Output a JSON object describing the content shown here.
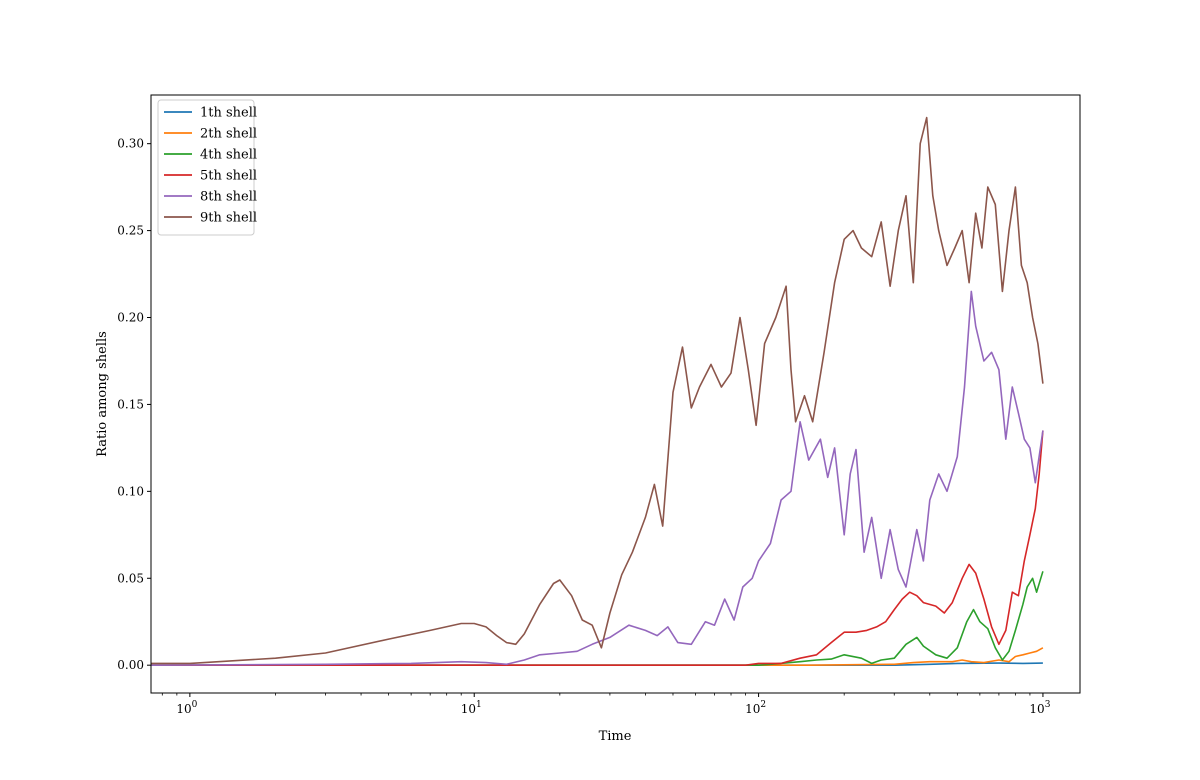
{
  "chart_data": {
    "type": "line",
    "title": "",
    "xlabel": "Time",
    "ylabel": "Ratio among shells",
    "xscale": "log",
    "xlim": [
      0.73,
      1350
    ],
    "ylim": [
      -0.016,
      0.328
    ],
    "grid": false,
    "legend_position": "upper-left",
    "x_ticks": [
      {
        "value": 1,
        "base": "10",
        "exp": "0"
      },
      {
        "value": 10,
        "base": "10",
        "exp": "1"
      },
      {
        "value": 100,
        "base": "10",
        "exp": "2"
      },
      {
        "value": 1000,
        "base": "10",
        "exp": "3"
      }
    ],
    "y_ticks": [
      {
        "value": 0.0,
        "label": "0.00"
      },
      {
        "value": 0.05,
        "label": "0.05"
      },
      {
        "value": 0.1,
        "label": "0.10"
      },
      {
        "value": 0.15,
        "label": "0.15"
      },
      {
        "value": 0.2,
        "label": "0.20"
      },
      {
        "value": 0.25,
        "label": "0.25"
      },
      {
        "value": 0.3,
        "label": "0.30"
      }
    ],
    "series": [
      {
        "name": "1th shell",
        "color": "#1f77b4",
        "points": [
          [
            0.73,
            0.0
          ],
          [
            100,
            0.0
          ],
          [
            300,
            0.0
          ],
          [
            400,
            0.0005
          ],
          [
            500,
            0.001
          ],
          [
            700,
            0.0012
          ],
          [
            850,
            0.001
          ],
          [
            1000,
            0.0012
          ]
        ]
      },
      {
        "name": "2th shell",
        "color": "#ff7f0e",
        "points": [
          [
            0.73,
            0.0
          ],
          [
            150,
            0.0
          ],
          [
            300,
            0.0005
          ],
          [
            350,
            0.0015
          ],
          [
            400,
            0.002
          ],
          [
            480,
            0.002
          ],
          [
            520,
            0.003
          ],
          [
            560,
            0.002
          ],
          [
            620,
            0.0015
          ],
          [
            700,
            0.003
          ],
          [
            760,
            0.002
          ],
          [
            800,
            0.005
          ],
          [
            850,
            0.006
          ],
          [
            900,
            0.007
          ],
          [
            950,
            0.008
          ],
          [
            1000,
            0.01
          ]
        ]
      },
      {
        "name": "4th shell",
        "color": "#2ca02c",
        "points": [
          [
            0.73,
            0.0
          ],
          [
            100,
            0.0
          ],
          [
            110,
            0.0005
          ],
          [
            140,
            0.002
          ],
          [
            160,
            0.003
          ],
          [
            180,
            0.0035
          ],
          [
            200,
            0.006
          ],
          [
            230,
            0.004
          ],
          [
            250,
            0.001
          ],
          [
            270,
            0.003
          ],
          [
            300,
            0.004
          ],
          [
            330,
            0.012
          ],
          [
            360,
            0.016
          ],
          [
            380,
            0.011
          ],
          [
            420,
            0.006
          ],
          [
            460,
            0.004
          ],
          [
            500,
            0.01
          ],
          [
            540,
            0.025
          ],
          [
            570,
            0.032
          ],
          [
            600,
            0.025
          ],
          [
            640,
            0.021
          ],
          [
            680,
            0.01
          ],
          [
            720,
            0.003
          ],
          [
            760,
            0.008
          ],
          [
            800,
            0.02
          ],
          [
            850,
            0.035
          ],
          [
            880,
            0.045
          ],
          [
            920,
            0.05
          ],
          [
            950,
            0.042
          ],
          [
            1000,
            0.054
          ]
        ]
      },
      {
        "name": "5th shell",
        "color": "#d62728",
        "points": [
          [
            0.73,
            0.0
          ],
          [
            90,
            0.0
          ],
          [
            100,
            0.001
          ],
          [
            120,
            0.001
          ],
          [
            140,
            0.004
          ],
          [
            160,
            0.006
          ],
          [
            180,
            0.013
          ],
          [
            200,
            0.019
          ],
          [
            220,
            0.019
          ],
          [
            240,
            0.02
          ],
          [
            260,
            0.022
          ],
          [
            280,
            0.025
          ],
          [
            300,
            0.032
          ],
          [
            320,
            0.038
          ],
          [
            340,
            0.042
          ],
          [
            360,
            0.04
          ],
          [
            380,
            0.036
          ],
          [
            420,
            0.034
          ],
          [
            450,
            0.03
          ],
          [
            480,
            0.036
          ],
          [
            520,
            0.05
          ],
          [
            550,
            0.058
          ],
          [
            580,
            0.053
          ],
          [
            620,
            0.038
          ],
          [
            660,
            0.022
          ],
          [
            700,
            0.012
          ],
          [
            740,
            0.02
          ],
          [
            780,
            0.042
          ],
          [
            820,
            0.04
          ],
          [
            860,
            0.06
          ],
          [
            900,
            0.075
          ],
          [
            940,
            0.09
          ],
          [
            970,
            0.11
          ],
          [
            1000,
            0.135
          ]
        ]
      },
      {
        "name": "8th shell",
        "color": "#9467bd",
        "points": [
          [
            0.73,
            0.0
          ],
          [
            3,
            0.0005
          ],
          [
            6,
            0.001
          ],
          [
            9,
            0.002
          ],
          [
            11,
            0.0015
          ],
          [
            13,
            0.0005
          ],
          [
            15,
            0.003
          ],
          [
            17,
            0.006
          ],
          [
            20,
            0.007
          ],
          [
            23,
            0.008
          ],
          [
            26,
            0.012
          ],
          [
            30,
            0.016
          ],
          [
            35,
            0.023
          ],
          [
            40,
            0.02
          ],
          [
            44,
            0.017
          ],
          [
            48,
            0.022
          ],
          [
            52,
            0.013
          ],
          [
            58,
            0.012
          ],
          [
            65,
            0.025
          ],
          [
            70,
            0.023
          ],
          [
            76,
            0.038
          ],
          [
            82,
            0.026
          ],
          [
            88,
            0.045
          ],
          [
            95,
            0.05
          ],
          [
            100,
            0.06
          ],
          [
            110,
            0.07
          ],
          [
            120,
            0.095
          ],
          [
            130,
            0.1
          ],
          [
            140,
            0.14
          ],
          [
            150,
            0.118
          ],
          [
            165,
            0.13
          ],
          [
            175,
            0.108
          ],
          [
            185,
            0.125
          ],
          [
            200,
            0.075
          ],
          [
            210,
            0.11
          ],
          [
            220,
            0.124
          ],
          [
            235,
            0.065
          ],
          [
            250,
            0.085
          ],
          [
            270,
            0.05
          ],
          [
            290,
            0.078
          ],
          [
            310,
            0.055
          ],
          [
            330,
            0.045
          ],
          [
            360,
            0.078
          ],
          [
            380,
            0.06
          ],
          [
            400,
            0.095
          ],
          [
            430,
            0.11
          ],
          [
            460,
            0.1
          ],
          [
            500,
            0.12
          ],
          [
            530,
            0.16
          ],
          [
            560,
            0.215
          ],
          [
            580,
            0.195
          ],
          [
            620,
            0.175
          ],
          [
            660,
            0.18
          ],
          [
            700,
            0.17
          ],
          [
            740,
            0.13
          ],
          [
            780,
            0.16
          ],
          [
            820,
            0.145
          ],
          [
            860,
            0.13
          ],
          [
            900,
            0.125
          ],
          [
            940,
            0.105
          ],
          [
            980,
            0.125
          ],
          [
            1000,
            0.135
          ]
        ]
      },
      {
        "name": "9th shell",
        "color": "#8c564b",
        "points": [
          [
            0.73,
            0.001
          ],
          [
            1,
            0.001
          ],
          [
            2,
            0.004
          ],
          [
            3,
            0.007
          ],
          [
            5,
            0.015
          ],
          [
            7,
            0.02
          ],
          [
            9,
            0.024
          ],
          [
            10,
            0.024
          ],
          [
            11,
            0.022
          ],
          [
            12,
            0.017
          ],
          [
            13,
            0.013
          ],
          [
            14,
            0.012
          ],
          [
            15,
            0.018
          ],
          [
            17,
            0.035
          ],
          [
            19,
            0.047
          ],
          [
            20,
            0.049
          ],
          [
            22,
            0.04
          ],
          [
            24,
            0.026
          ],
          [
            26,
            0.023
          ],
          [
            28,
            0.01
          ],
          [
            30,
            0.03
          ],
          [
            33,
            0.052
          ],
          [
            36,
            0.065
          ],
          [
            40,
            0.085
          ],
          [
            43,
            0.104
          ],
          [
            46,
            0.08
          ],
          [
            50,
            0.157
          ],
          [
            54,
            0.183
          ],
          [
            58,
            0.148
          ],
          [
            62,
            0.16
          ],
          [
            68,
            0.173
          ],
          [
            74,
            0.16
          ],
          [
            80,
            0.168
          ],
          [
            86,
            0.2
          ],
          [
            92,
            0.17
          ],
          [
            98,
            0.138
          ],
          [
            105,
            0.185
          ],
          [
            115,
            0.2
          ],
          [
            125,
            0.218
          ],
          [
            130,
            0.17
          ],
          [
            135,
            0.14
          ],
          [
            145,
            0.155
          ],
          [
            155,
            0.14
          ],
          [
            170,
            0.18
          ],
          [
            185,
            0.22
          ],
          [
            200,
            0.245
          ],
          [
            215,
            0.25
          ],
          [
            230,
            0.24
          ],
          [
            250,
            0.235
          ],
          [
            270,
            0.255
          ],
          [
            290,
            0.218
          ],
          [
            310,
            0.25
          ],
          [
            330,
            0.27
          ],
          [
            350,
            0.22
          ],
          [
            370,
            0.3
          ],
          [
            390,
            0.315
          ],
          [
            410,
            0.27
          ],
          [
            430,
            0.25
          ],
          [
            460,
            0.23
          ],
          [
            490,
            0.24
          ],
          [
            520,
            0.25
          ],
          [
            550,
            0.22
          ],
          [
            580,
            0.26
          ],
          [
            610,
            0.24
          ],
          [
            640,
            0.275
          ],
          [
            680,
            0.265
          ],
          [
            720,
            0.215
          ],
          [
            760,
            0.25
          ],
          [
            800,
            0.275
          ],
          [
            840,
            0.23
          ],
          [
            880,
            0.22
          ],
          [
            920,
            0.2
          ],
          [
            960,
            0.185
          ],
          [
            1000,
            0.162
          ]
        ]
      }
    ]
  }
}
